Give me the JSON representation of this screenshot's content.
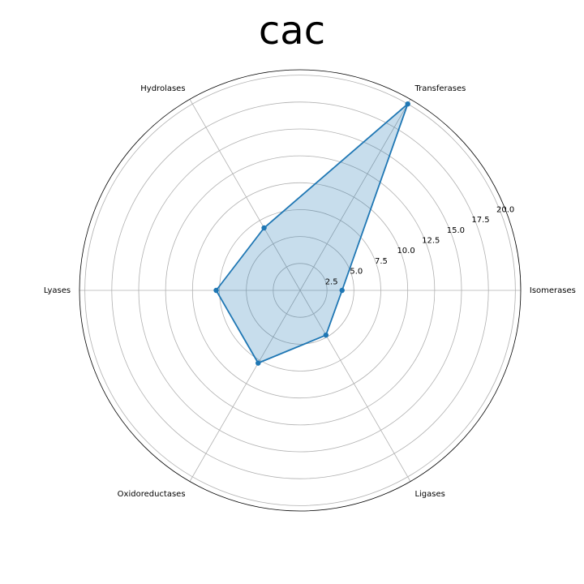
{
  "chart_data": {
    "type": "radar",
    "title": "cac",
    "categories": [
      "Isomerases",
      "Transferases",
      "Hydrolases",
      "Lyases",
      "Oxidoreductases",
      "Ligases"
    ],
    "series": [
      {
        "values": [
          3.9,
          20.0,
          6.7,
          7.8,
          7.8,
          4.8
        ]
      }
    ],
    "rlim": [
      0,
      20.5
    ],
    "rticks": [
      2.5,
      5.0,
      7.5,
      10.0,
      12.5,
      15.0,
      17.5,
      20.0
    ],
    "rtick_labels": [
      "2.5",
      "5.0",
      "7.5",
      "10.0",
      "12.5",
      "15.0",
      "17.5",
      "20.0"
    ],
    "grid": true,
    "colors": {
      "line": "#1f77b4",
      "fill": "#1f77b4",
      "grid": "#b0b0b0",
      "frame": "#000000"
    }
  }
}
